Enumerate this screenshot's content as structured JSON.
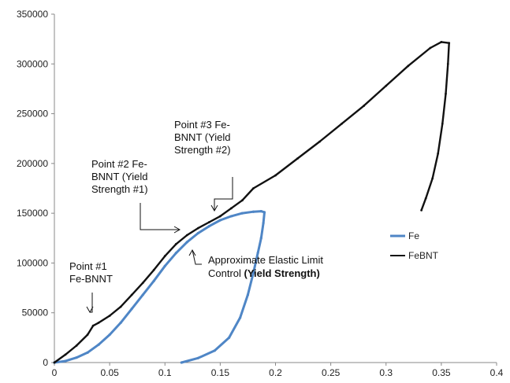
{
  "chart_data": {
    "type": "line",
    "title": "",
    "xlabel": "",
    "ylabel": "",
    "xlim": [
      0,
      0.4
    ],
    "ylim": [
      0,
      350000
    ],
    "x_ticks": [
      "0",
      "0.05",
      "0.1",
      "0.15",
      "0.2",
      "0.25",
      "0.3",
      "0.35",
      "0.4"
    ],
    "y_ticks": [
      "0",
      "50000",
      "100000",
      "150000",
      "200000",
      "250000",
      "300000",
      "350000"
    ],
    "grid": false,
    "legend_position": "right",
    "series": [
      {
        "name": "Fe",
        "color": "#4f86c6",
        "points": [
          [
            0,
            0
          ],
          [
            0.01,
            1500
          ],
          [
            0.02,
            5000
          ],
          [
            0.03,
            10000
          ],
          [
            0.04,
            18000
          ],
          [
            0.05,
            28000
          ],
          [
            0.06,
            40000
          ],
          [
            0.07,
            54000
          ],
          [
            0.08,
            68000
          ],
          [
            0.09,
            82000
          ],
          [
            0.1,
            97000
          ],
          [
            0.11,
            110000
          ],
          [
            0.12,
            121000
          ],
          [
            0.13,
            130000
          ],
          [
            0.14,
            137000
          ],
          [
            0.15,
            143000
          ],
          [
            0.16,
            147000
          ],
          [
            0.17,
            150000
          ],
          [
            0.18,
            151500
          ],
          [
            0.187,
            152000
          ],
          [
            0.19,
            151000
          ],
          [
            0.189,
            140000
          ],
          [
            0.187,
            125000
          ],
          [
            0.184,
            110000
          ],
          [
            0.18,
            90000
          ],
          [
            0.175,
            68000
          ],
          [
            0.168,
            45000
          ],
          [
            0.158,
            25000
          ],
          [
            0.145,
            12000
          ],
          [
            0.13,
            4500
          ],
          [
            0.115,
            0
          ]
        ]
      },
      {
        "name": "FeBNT",
        "color": "#111111",
        "points": [
          [
            0,
            0
          ],
          [
            0.01,
            8000
          ],
          [
            0.02,
            17000
          ],
          [
            0.03,
            28000
          ],
          [
            0.035,
            37000
          ],
          [
            0.04,
            40000
          ],
          [
            0.05,
            47000
          ],
          [
            0.06,
            56000
          ],
          [
            0.07,
            68000
          ],
          [
            0.08,
            80000
          ],
          [
            0.09,
            93000
          ],
          [
            0.1,
            107000
          ],
          [
            0.11,
            119000
          ],
          [
            0.12,
            128000
          ],
          [
            0.13,
            135000
          ],
          [
            0.14,
            141000
          ],
          [
            0.15,
            147000
          ],
          [
            0.16,
            155000
          ],
          [
            0.17,
            163000
          ],
          [
            0.18,
            175000
          ],
          [
            0.2,
            188000
          ],
          [
            0.22,
            205000
          ],
          [
            0.24,
            222000
          ],
          [
            0.26,
            240000
          ],
          [
            0.28,
            258000
          ],
          [
            0.3,
            278000
          ],
          [
            0.32,
            298000
          ],
          [
            0.34,
            316000
          ],
          [
            0.35,
            322000
          ],
          [
            0.357,
            321000
          ],
          [
            0.356,
            300000
          ],
          [
            0.354,
            270000
          ],
          [
            0.351,
            240000
          ],
          [
            0.347,
            210000
          ],
          [
            0.342,
            185000
          ],
          [
            0.336,
            165000
          ],
          [
            0.332,
            153000
          ]
        ]
      }
    ],
    "annotations": [
      {
        "lines": [
          "Point #1",
          "Fe-BNNT"
        ],
        "target": [
          0.034,
          38000
        ]
      },
      {
        "lines": [
          "Point #2 Fe-",
          "BNNT (Yield",
          "Strength #1)"
        ],
        "target": [
          0.115,
          130000
        ]
      },
      {
        "lines": [
          "Point #3 Fe-",
          "BNNT (Yield",
          "Strength #2)"
        ],
        "target": [
          0.144,
          147000
        ]
      },
      {
        "lines": [
          "Approximate Elastic Limit",
          "Control "
        ],
        "bold_suffix": "(Yield Strength)",
        "target": [
          0.123,
          113000
        ]
      }
    ]
  }
}
